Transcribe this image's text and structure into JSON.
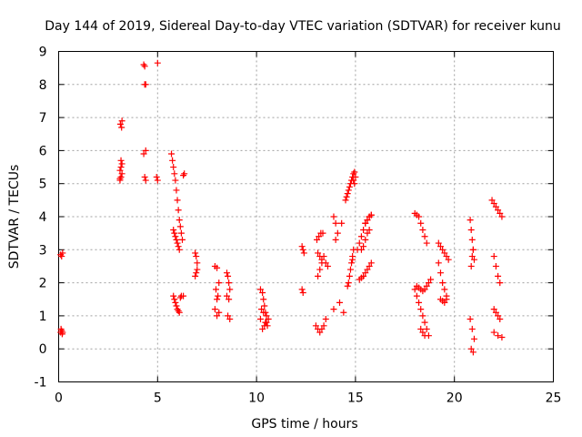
{
  "chart_data": {
    "type": "scatter",
    "title": "Day 144 of 2019, Sidereal Day-to-day VTEC variation (SDTVAR) for receiver kunu",
    "xlabel": "GPS time / hours",
    "ylabel": "SDTVAR / TECUs",
    "xlim": [
      0,
      25
    ],
    "ylim": [
      -1,
      9
    ],
    "xticks": [
      0,
      5,
      10,
      15,
      20,
      25
    ],
    "yticks": [
      -1,
      0,
      1,
      2,
      3,
      4,
      5,
      6,
      7,
      8,
      9
    ],
    "grid": true,
    "marker": "+",
    "color": "#ff0000",
    "series": [
      {
        "name": "SDTVAR",
        "x": [
          0.1,
          0.15,
          0.2,
          0.1,
          0.15,
          0.2,
          0.12,
          0.18,
          3.1,
          3.15,
          3.2,
          3.1,
          3.15,
          3.2,
          3.18,
          3.12,
          3.2,
          3.15,
          3.1,
          4.3,
          4.35,
          4.4,
          4.35,
          4.4,
          4.3,
          4.35,
          4.4,
          5.0,
          4.95,
          5.0,
          5.7,
          5.75,
          5.8,
          5.85,
          5.9,
          5.95,
          6.0,
          6.05,
          6.1,
          6.15,
          6.2,
          6.25,
          6.3,
          6.35,
          5.8,
          5.85,
          5.9,
          5.95,
          6.0,
          6.05,
          6.1,
          5.8,
          5.85,
          5.9,
          5.95,
          6.0,
          6.05,
          6.1,
          6.2,
          6.15,
          6.3,
          6.9,
          6.95,
          7.0,
          7.0,
          6.95,
          6.9,
          7.9,
          8.0,
          8.1,
          7.95,
          8.05,
          8.0,
          7.9,
          8.1,
          8.0,
          8.5,
          8.55,
          8.6,
          8.65,
          8.5,
          8.6,
          8.55,
          8.65,
          10.2,
          10.3,
          10.35,
          10.4,
          10.45,
          10.5,
          10.6,
          10.25,
          10.35,
          10.45,
          10.55,
          10.3,
          10.4,
          10.5,
          10.2,
          12.3,
          12.35,
          12.4,
          12.3,
          12.35,
          13.0,
          13.1,
          13.2,
          13.3,
          13.4,
          13.5,
          13.1,
          13.2,
          13.3,
          13.4,
          13.05,
          13.15,
          13.25,
          13.35,
          13.1,
          13.2,
          13.3,
          13.5,
          13.6,
          13.9,
          14.0,
          14.1,
          14.0,
          13.9,
          14.3,
          14.2,
          14.4,
          14.5,
          14.55,
          14.6,
          14.65,
          14.7,
          14.75,
          14.8,
          14.85,
          14.9,
          14.95,
          15.0,
          14.9,
          14.95,
          14.85,
          14.6,
          14.65,
          14.7,
          14.75,
          14.8,
          14.85,
          14.9,
          15.1,
          15.2,
          15.3,
          15.4,
          15.5,
          15.6,
          15.7,
          15.8,
          15.2,
          15.3,
          15.4,
          15.5,
          15.6,
          15.7,
          15.8,
          15.3,
          15.4,
          15.5,
          15.6,
          15.7,
          15.5,
          15.6,
          15.7,
          15.8,
          18.0,
          18.1,
          18.2,
          18.3,
          18.4,
          18.5,
          18.6,
          18.7,
          18.8,
          18.0,
          18.1,
          18.2,
          18.3,
          18.4,
          18.5,
          18.6,
          18.7,
          18.1,
          18.2,
          18.3,
          18.4,
          18.5,
          18.6,
          18.3,
          18.4,
          18.5,
          19.2,
          19.3,
          19.4,
          19.5,
          19.6,
          19.7,
          19.2,
          19.3,
          19.4,
          19.5,
          19.6,
          19.3,
          19.4,
          19.5,
          19.6,
          20.8,
          20.85,
          20.9,
          20.95,
          21.0,
          20.85,
          20.9,
          20.95,
          20.8,
          20.9,
          21.0,
          20.85,
          20.95,
          21.9,
          22.0,
          22.1,
          22.2,
          22.3,
          22.4,
          22.0,
          22.1,
          22.2,
          22.3,
          22.0,
          22.1,
          22.2,
          22.3,
          22.0,
          22.2,
          22.4
        ],
        "y": [
          2.85,
          2.8,
          2.9,
          0.5,
          0.55,
          0.5,
          0.6,
          0.45,
          5.1,
          5.2,
          5.3,
          5.4,
          5.5,
          5.6,
          6.7,
          6.8,
          6.9,
          5.7,
          5.15,
          8.6,
          8.55,
          8.0,
          8.0,
          6.0,
          5.9,
          5.2,
          5.1,
          8.65,
          5.2,
          5.1,
          5.9,
          5.7,
          5.5,
          5.3,
          5.1,
          4.8,
          4.5,
          4.2,
          3.9,
          3.7,
          3.5,
          3.3,
          5.25,
          5.3,
          3.6,
          3.5,
          3.4,
          3.3,
          3.2,
          3.1,
          3.0,
          1.6,
          1.5,
          1.4,
          1.3,
          1.2,
          1.15,
          1.1,
          1.6,
          1.55,
          1.6,
          2.9,
          2.8,
          2.6,
          2.4,
          2.3,
          2.2,
          2.5,
          2.45,
          2.0,
          1.8,
          1.6,
          1.5,
          1.2,
          1.1,
          1.0,
          2.3,
          2.2,
          2.0,
          1.8,
          1.6,
          1.5,
          1.0,
          0.9,
          1.8,
          1.7,
          1.5,
          1.3,
          1.1,
          1.0,
          0.9,
          1.2,
          1.1,
          0.8,
          0.7,
          0.6,
          0.7,
          0.8,
          0.9,
          3.1,
          3.0,
          2.9,
          1.8,
          1.7,
          0.7,
          0.6,
          0.5,
          0.6,
          0.7,
          0.9,
          2.2,
          2.4,
          2.6,
          2.8,
          3.3,
          3.4,
          3.5,
          3.5,
          2.9,
          2.8,
          2.7,
          2.6,
          2.5,
          4.0,
          3.8,
          3.5,
          3.3,
          1.2,
          3.8,
          1.4,
          1.1,
          4.5,
          4.6,
          4.7,
          4.8,
          4.9,
          5.0,
          5.1,
          5.2,
          5.3,
          5.35,
          5.2,
          5.1,
          5.0,
          2.7,
          1.9,
          2.0,
          2.2,
          2.4,
          2.6,
          2.8,
          3.0,
          3.0,
          3.2,
          3.4,
          3.6,
          3.8,
          3.9,
          4.0,
          4.05,
          2.1,
          2.15,
          2.2,
          2.3,
          2.4,
          2.5,
          2.6,
          3.0,
          3.1,
          3.3,
          3.5,
          3.6,
          3.8,
          3.9,
          4.0,
          4.05,
          4.1,
          4.05,
          4.0,
          3.8,
          3.6,
          3.4,
          3.2,
          2.0,
          2.1,
          1.8,
          1.6,
          1.4,
          1.2,
          1.0,
          0.8,
          0.6,
          0.4,
          1.9,
          1.85,
          1.8,
          1.75,
          1.8,
          1.9,
          0.6,
          0.5,
          0.4,
          3.2,
          3.1,
          3.0,
          2.9,
          2.8,
          2.7,
          2.6,
          2.3,
          2.0,
          1.8,
          1.6,
          1.5,
          1.45,
          1.4,
          1.5,
          3.9,
          3.6,
          3.3,
          3.0,
          2.7,
          2.5,
          2.8,
          3.0,
          0.9,
          0.6,
          0.3,
          0.0,
          -0.1,
          4.5,
          4.4,
          4.3,
          4.2,
          4.1,
          4.0,
          2.8,
          2.5,
          2.2,
          2.0,
          1.2,
          1.1,
          1.0,
          0.9,
          0.5,
          0.4,
          0.35
        ]
      }
    ]
  }
}
